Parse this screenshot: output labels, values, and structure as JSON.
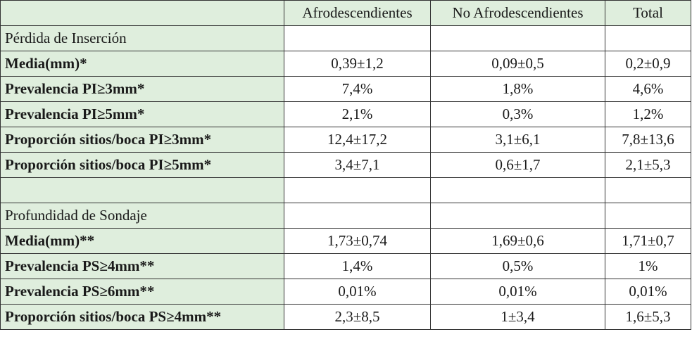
{
  "columns": [
    "",
    "Afrodescendientes",
    "No Afrodescendientes",
    "Total"
  ],
  "rows": [
    {
      "type": "section",
      "label": "Pérdida de Inserción"
    },
    {
      "type": "data",
      "label": "Media(mm)*",
      "values": [
        "0,39±1,2",
        "0,09±0,5",
        "0,2±0,9"
      ]
    },
    {
      "type": "data",
      "label": "Prevalencia PI≥3mm*",
      "values": [
        "7,4%",
        "1,8%",
        "4,6%"
      ]
    },
    {
      "type": "data",
      "label": "Prevalencia PI≥5mm*",
      "values": [
        "2,1%",
        "0,3%",
        "1,2%"
      ]
    },
    {
      "type": "data",
      "label": "Proporción sitios/boca PI≥3mm*",
      "values": [
        "12,4±17,2",
        "3,1±6,1",
        "7,8±13,6"
      ]
    },
    {
      "type": "data",
      "label": "Proporción sitios/boca PI≥5mm*",
      "values": [
        "3,4±7,1",
        "0,6±1,7",
        "2,1±5,3"
      ]
    },
    {
      "type": "blank",
      "label": ""
    },
    {
      "type": "section",
      "label": "Profundidad de Sondaje"
    },
    {
      "type": "data",
      "label": "Media(mm)**",
      "values": [
        "1,73±0,74",
        "1,69±0,6",
        "1,71±0,7"
      ]
    },
    {
      "type": "data",
      "label": "Prevalencia PS≥4mm**",
      "values": [
        "1,4%",
        "0,5%",
        "1%"
      ]
    },
    {
      "type": "data",
      "label": "Prevalencia PS≥6mm**",
      "values": [
        "0,01%",
        "0,01%",
        "0,01%"
      ]
    },
    {
      "type": "data",
      "label": "Proporción sitios/boca PS≥4mm**",
      "values": [
        "2,3±8,5",
        "1±3,4",
        "1,6±5,3"
      ]
    }
  ],
  "colors": {
    "shade": "#dfeedd",
    "border": "#333333"
  }
}
